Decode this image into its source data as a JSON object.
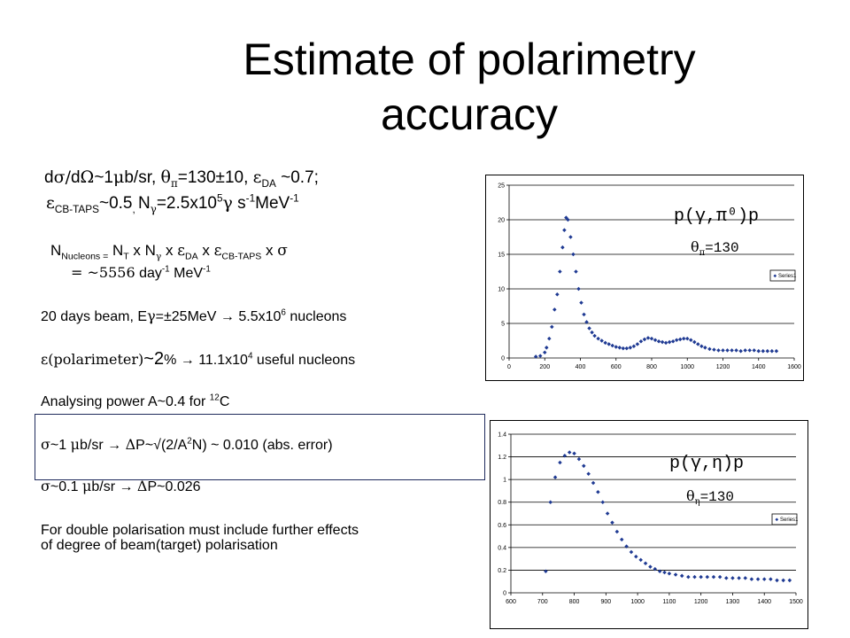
{
  "slide": {
    "title_line1": "Estimate of polarimetry",
    "title_line2": "accuracy"
  },
  "text": {
    "line1": {
      "d": "d",
      "sig": "σ",
      "slash": "/",
      "d2": "d",
      "Om": "Ω",
      "val1": "~1",
      "mu": "μ",
      "val2": "b/sr, ",
      "th": "θ",
      "pi": "π",
      "val3": "=130±10, ",
      "eps": "ε",
      "sub_da": "DA",
      "val4": " ~0.7;"
    },
    "line2": {
      "eps": "ε",
      "sub_cb": "CB-TAPS",
      "val1": "~0.5",
      "comma": ", ",
      "N": "N",
      "gam_sub": "γ",
      "val2": "=2.5x10",
      "sup5": "5",
      "gam": "γ",
      "s": " s",
      "sup_m1": "-1",
      "mev": "MeV",
      "sup_m1b": "-1"
    },
    "line3": {
      "N": "N",
      "sub_nuc": "Nucleons =",
      "nt": " N",
      "sub_t": "T",
      "x1": " x N",
      "sub_g": "γ",
      "x2": " x ",
      "eps1": "ε",
      "sub_da": "DA",
      "x3": " x ",
      "eps2": "ε",
      "sub_cb": "CB-TAPS",
      "x4": "  x ",
      "sig": "σ"
    },
    "line4": {
      "eq": "=  ~5556",
      "day": " day",
      "sup1": "-1",
      "mev": " MeV",
      "sup2": "-1"
    },
    "line5": {
      "a": "20 days beam, E",
      "g": "γ",
      "b": "=±25MeV → 5.5x10",
      "sup6": "6",
      "c": " nucleons"
    },
    "line6": {
      "eps": "ε",
      "a": "(polarimeter)",
      "b": "~2",
      "c": "% → 11.1x10",
      "sup4": "4",
      "d": " useful nucleons"
    },
    "line7": {
      "a": "Analysing power A~0.4 for ",
      "sup12": "12",
      "b": "C"
    },
    "line8": {
      "sig": "σ",
      "a": "~1 ",
      "mu": "μ",
      "b": "b/sr → ",
      "del": "Δ",
      "c": "P~√(2/A",
      "sup2": "2",
      "d": "N) ~ 0.010 (abs. error)"
    },
    "line9": {
      "sig": "σ",
      "a": "~0.1 ",
      "mu": "μ",
      "b": "b/sr → ",
      "del": "Δ",
      "c": "P~0.026"
    },
    "line10": {
      "a": "For double polarisation must include further effects",
      "b": "of degree of beam(target) polarisation"
    }
  },
  "chart_labels": {
    "top_reaction": "p(γ,π⁰)p",
    "top_angle_sym": "θ",
    "top_angle_sub": "π",
    "top_angle_val": "=130",
    "bottom_reaction": "p(γ,η)p",
    "bottom_angle_sym": "θ",
    "bottom_angle_sub": "η",
    "bottom_angle_val": "=130"
  },
  "chart_data": [
    {
      "type": "scatter",
      "legend": [
        "Series1"
      ],
      "legend_placement": "right",
      "xlim": [
        0,
        1600
      ],
      "ylim": [
        0,
        25
      ],
      "xticks": [
        "0",
        "200",
        "400",
        "600",
        "800",
        "1000",
        "1200",
        "1400",
        "1600"
      ],
      "yticks": [
        "0",
        "5",
        "10",
        "15",
        "20",
        "25"
      ],
      "grid": true,
      "marker_color": "#1f3a93",
      "x": [
        150,
        175,
        200,
        210,
        225,
        240,
        255,
        270,
        285,
        300,
        310,
        320,
        330,
        345,
        360,
        375,
        390,
        405,
        420,
        435,
        450,
        465,
        480,
        500,
        520,
        540,
        560,
        580,
        600,
        620,
        640,
        660,
        680,
        700,
        720,
        740,
        760,
        780,
        800,
        820,
        840,
        860,
        880,
        900,
        920,
        940,
        960,
        980,
        1000,
        1020,
        1040,
        1060,
        1080,
        1100,
        1125,
        1150,
        1175,
        1200,
        1225,
        1250,
        1275,
        1300,
        1325,
        1350,
        1375,
        1400,
        1425,
        1450,
        1475,
        1500
      ],
      "values": [
        0.2,
        0.3,
        0.8,
        1.5,
        2.8,
        4.5,
        7.0,
        9.2,
        12.5,
        16.0,
        18.5,
        20.3,
        20.0,
        17.5,
        15.0,
        12.5,
        10.0,
        8.0,
        6.3,
        5.2,
        4.3,
        3.7,
        3.2,
        2.8,
        2.5,
        2.2,
        2.0,
        1.8,
        1.6,
        1.5,
        1.4,
        1.4,
        1.5,
        1.7,
        2.0,
        2.4,
        2.7,
        2.9,
        2.8,
        2.6,
        2.4,
        2.3,
        2.2,
        2.3,
        2.4,
        2.6,
        2.7,
        2.8,
        2.8,
        2.6,
        2.3,
        2.0,
        1.7,
        1.5,
        1.3,
        1.2,
        1.1,
        1.1,
        1.1,
        1.1,
        1.1,
        1.0,
        1.1,
        1.1,
        1.1,
        1.0,
        1.0,
        1.0,
        1.0,
        1.0
      ]
    },
    {
      "type": "scatter",
      "legend": [
        "Series1"
      ],
      "legend_placement": "right",
      "xlim": [
        600,
        1500
      ],
      "ylim": [
        0,
        1.4
      ],
      "xticks": [
        "600",
        "700",
        "800",
        "900",
        "1000",
        "1100",
        "1200",
        "1300",
        "1400",
        "1500"
      ],
      "yticks": [
        "0",
        "0.2",
        "0.4",
        "0.6",
        "0.8",
        "1",
        "1.2",
        "1.4"
      ],
      "grid": true,
      "marker_color": "#1f3a93",
      "x": [
        710,
        725,
        740,
        755,
        770,
        785,
        800,
        815,
        830,
        845,
        860,
        875,
        890,
        905,
        920,
        935,
        950,
        965,
        980,
        995,
        1010,
        1025,
        1040,
        1055,
        1070,
        1085,
        1100,
        1120,
        1140,
        1160,
        1180,
        1200,
        1220,
        1240,
        1260,
        1280,
        1300,
        1320,
        1340,
        1360,
        1380,
        1400,
        1420,
        1440,
        1460,
        1480
      ],
      "values": [
        0.19,
        0.8,
        1.02,
        1.15,
        1.21,
        1.24,
        1.23,
        1.18,
        1.12,
        1.05,
        0.97,
        0.89,
        0.8,
        0.7,
        0.62,
        0.54,
        0.47,
        0.41,
        0.36,
        0.32,
        0.29,
        0.26,
        0.23,
        0.21,
        0.19,
        0.18,
        0.17,
        0.16,
        0.15,
        0.14,
        0.14,
        0.14,
        0.14,
        0.14,
        0.14,
        0.13,
        0.13,
        0.13,
        0.13,
        0.12,
        0.12,
        0.12,
        0.12,
        0.11,
        0.11,
        0.11
      ]
    }
  ]
}
